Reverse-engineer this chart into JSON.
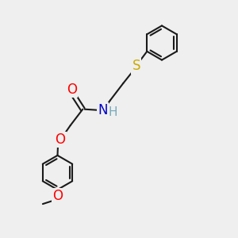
{
  "bg_color": "#efefef",
  "bond_color": "#1a1a1a",
  "atom_colors": {
    "O": "#ff0000",
    "N": "#0000cc",
    "S": "#ccaa00",
    "H": "#7ab",
    "C": "#1a1a1a"
  },
  "font_size_atom": 11,
  "line_width": 1.5,
  "figsize": [
    3.0,
    3.0
  ],
  "dpi": 100
}
